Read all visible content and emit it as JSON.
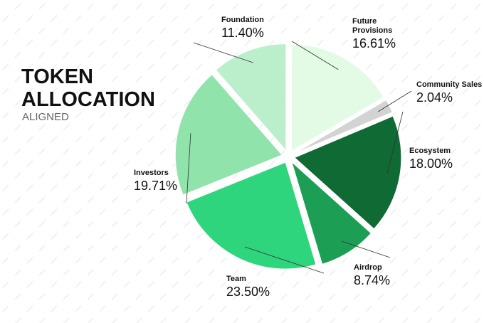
{
  "chart_data": {
    "type": "pie",
    "title": "TOKEN ALLOCATION",
    "subtitle": "ALIGNED",
    "categories": [
      "Future Provisions",
      "Community Sales",
      "Ecosystem",
      "Airdrop",
      "Team",
      "Investors",
      "Foundation"
    ],
    "values": [
      16.61,
      2.04,
      18,
      8.74,
      23.5,
      19.71,
      11.4
    ],
    "value_labels": [
      "16.61%",
      "2.04%",
      "18.00%",
      "8.74%",
      "23.50%",
      "19.71%",
      "11.40%"
    ],
    "colors": [
      "#e3fbe4",
      "#d3d3d3",
      "#0f6a33",
      "#1c9f54",
      "#2fd57c",
      "#8fe3ab",
      "#bbefcb"
    ]
  }
}
